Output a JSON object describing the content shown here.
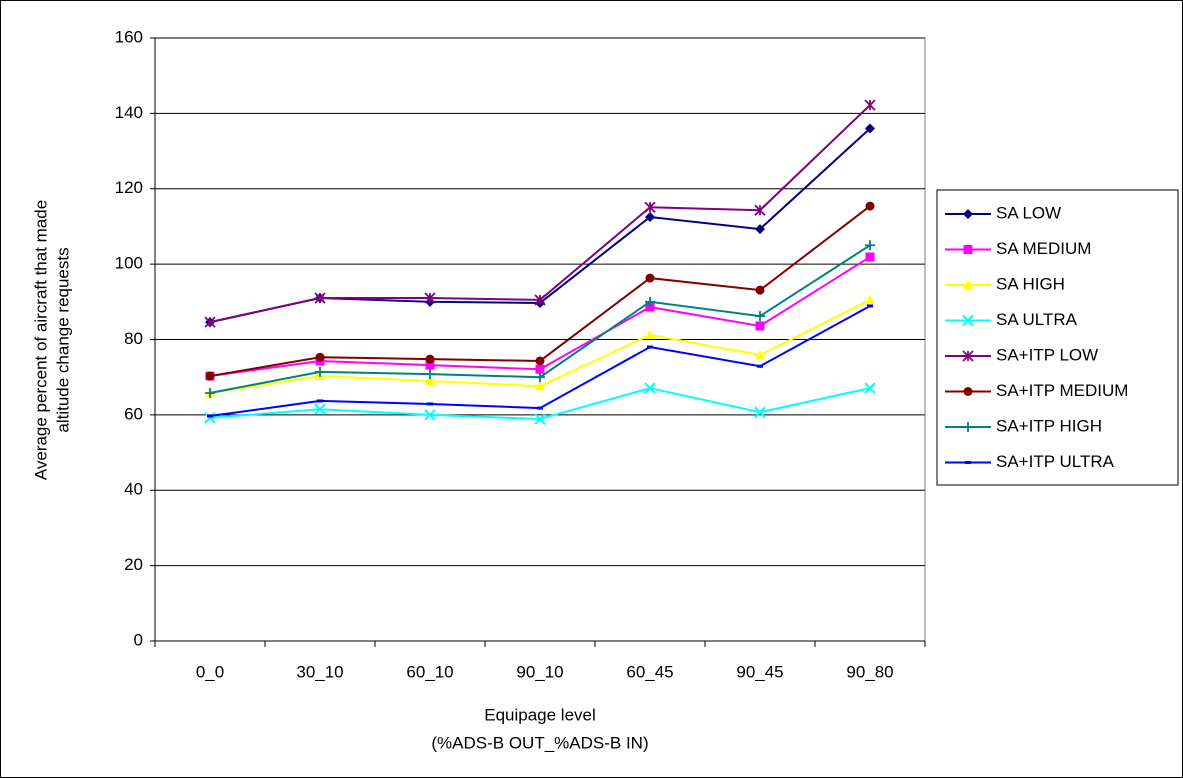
{
  "chart_data": {
    "type": "line",
    "y_label": [
      "Average percent of aircraft that made",
      "altitude change requests"
    ],
    "x_label": [
      "Equipage level",
      "(%ADS-B OUT_%ADS-B IN)"
    ],
    "categories": [
      "0_0",
      "30_10",
      "60_10",
      "90_10",
      "60_45",
      "90_45",
      "90_80"
    ],
    "ylim": [
      0,
      160
    ],
    "yticks": [
      0,
      20,
      40,
      60,
      80,
      100,
      120,
      140,
      160
    ],
    "grid": true,
    "legend": "right",
    "series": [
      {
        "name": "SA LOW",
        "color": "#000080",
        "marker": "diamond",
        "values": [
          84.6,
          91,
          90,
          89.7,
          112.5,
          109.3,
          136
        ]
      },
      {
        "name": "SA MEDIUM",
        "color": "#ff00ff",
        "marker": "square",
        "values": [
          70.3,
          74.3,
          73.2,
          72.1,
          88.6,
          83.6,
          101.9
        ]
      },
      {
        "name": "SA HIGH",
        "color": "#ffff00",
        "marker": "triangle",
        "values": [
          65.8,
          70.3,
          69,
          67.6,
          81.2,
          75.9,
          90.5
        ]
      },
      {
        "name": "SA ULTRA",
        "color": "#00ffff",
        "marker": "x",
        "values": [
          59.2,
          61.5,
          60,
          58.9,
          67.1,
          60.7,
          67.1
        ]
      },
      {
        "name": "SA+ITP LOW",
        "color": "#800080",
        "marker": "star",
        "values": [
          84.6,
          91,
          91,
          90.5,
          115.1,
          114.3,
          142.2
        ]
      },
      {
        "name": "SA+ITP MEDIUM",
        "color": "#800000",
        "marker": "circle",
        "values": [
          70.3,
          75.3,
          74.8,
          74.3,
          96.3,
          93.1,
          115.4
        ]
      },
      {
        "name": "SA+ITP HIGH",
        "color": "#008080",
        "marker": "plus",
        "values": [
          65.8,
          71.4,
          70.8,
          70,
          90,
          86.2,
          105
        ]
      },
      {
        "name": "SA+ITP ULTRA",
        "color": "#0000ff",
        "marker": "dash",
        "values": [
          59.7,
          63.7,
          62.9,
          61.8,
          78,
          72.9,
          88.9
        ]
      }
    ]
  }
}
